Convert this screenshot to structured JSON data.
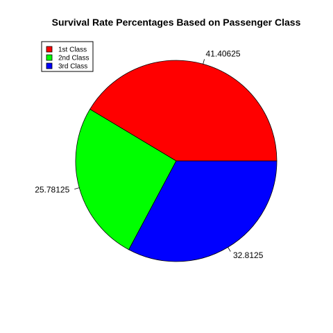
{
  "chart_data": {
    "type": "pie",
    "title": "Survival Rate Percentages Based on Passenger Class",
    "categories": [
      "1st Class",
      "2nd Class",
      "3rd Class"
    ],
    "values": [
      41.40625,
      25.78125,
      32.8125
    ],
    "value_labels": [
      "41.40625",
      "25.78125",
      "32.8125"
    ],
    "colors": [
      "#ff0000",
      "#00ff00",
      "#0000ff"
    ],
    "start_angle_deg": 0,
    "direction": "counterclockwise",
    "legend": {
      "position": "top-left",
      "entries": [
        "1st Class",
        "2nd Class",
        "3rd Class"
      ]
    }
  }
}
